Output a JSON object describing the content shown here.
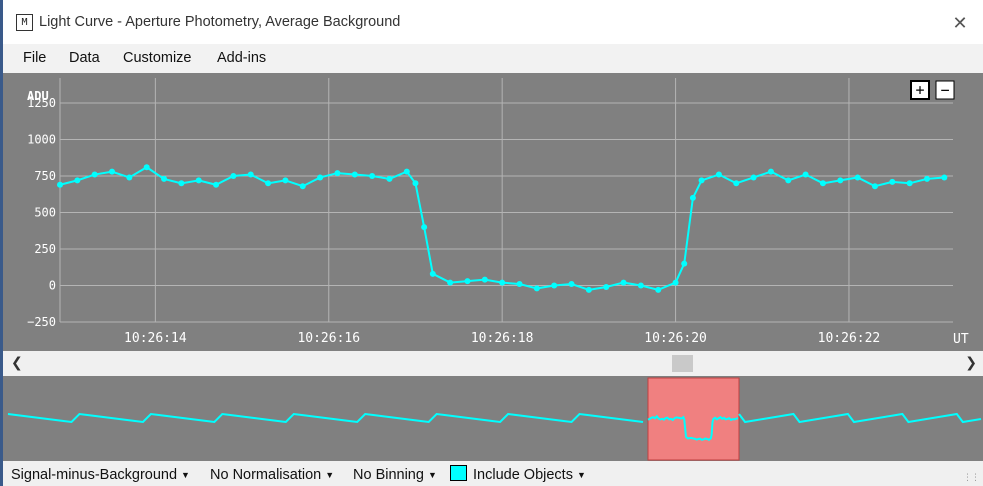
{
  "window": {
    "title": "Light Curve - Aperture Photometry, Average Background",
    "app_icon_glyph": "M",
    "close_glyph": "✕"
  },
  "menu": {
    "items": [
      "File",
      "Data",
      "Customize",
      "Add-ins"
    ]
  },
  "plot": {
    "zoom_in_label": "+",
    "zoom_out_label": "−",
    "y_axis_label": "ADU",
    "x_axis_unit": "UT",
    "colors": {
      "background": "#808080",
      "grid": "#b4b4b4",
      "series": "#00ffff",
      "axis_text": "#ffffff"
    }
  },
  "chart_data": {
    "type": "line",
    "ylabel": "ADU",
    "xlabel": "UT",
    "ylim": [
      -250,
      1250
    ],
    "y_ticks": [
      -250,
      0,
      250,
      500,
      750,
      1000,
      1250
    ],
    "x_tick_labels": [
      "10:26:14",
      "10:26:16",
      "10:26:18",
      "10:26:20",
      "10:26:22"
    ],
    "xlim": [
      "10:26:12.9",
      "10:26:23.2"
    ],
    "grid": true,
    "series": [
      {
        "color": "#00ffff",
        "x": [
          "10:26:12.9",
          "10:26:13.1",
          "10:26:13.3",
          "10:26:13.5",
          "10:26:13.7",
          "10:26:13.9",
          "10:26:14.1",
          "10:26:14.3",
          "10:26:14.5",
          "10:26:14.7",
          "10:26:14.9",
          "10:26:15.1",
          "10:26:15.3",
          "10:26:15.5",
          "10:26:15.7",
          "10:26:15.9",
          "10:26:16.1",
          "10:26:16.3",
          "10:26:16.5",
          "10:26:16.7",
          "10:26:16.9",
          "10:26:17.0",
          "10:26:17.1",
          "10:26:17.2",
          "10:26:17.4",
          "10:26:17.6",
          "10:26:17.8",
          "10:26:18.0",
          "10:26:18.2",
          "10:26:18.4",
          "10:26:18.6",
          "10:26:18.8",
          "10:26:19.0",
          "10:26:19.2",
          "10:26:19.4",
          "10:26:19.6",
          "10:26:19.8",
          "10:26:20.0",
          "10:26:20.1",
          "10:26:20.2",
          "10:26:20.3",
          "10:26:20.5",
          "10:26:20.7",
          "10:26:20.9",
          "10:26:21.1",
          "10:26:21.3",
          "10:26:21.5",
          "10:26:21.7",
          "10:26:21.9",
          "10:26:22.1",
          "10:26:22.3",
          "10:26:22.5",
          "10:26:22.7",
          "10:26:22.9",
          "10:26:23.1"
        ],
        "y": [
          690,
          720,
          760,
          780,
          740,
          810,
          730,
          700,
          720,
          690,
          750,
          760,
          700,
          720,
          680,
          740,
          770,
          760,
          750,
          730,
          780,
          700,
          400,
          80,
          20,
          30,
          40,
          20,
          10,
          -20,
          0,
          10,
          -30,
          -10,
          20,
          0,
          -30,
          20,
          150,
          600,
          720,
          760,
          700,
          740,
          780,
          720,
          760,
          700,
          720,
          740,
          680,
          710,
          700,
          730,
          740
        ]
      }
    ]
  }
}
